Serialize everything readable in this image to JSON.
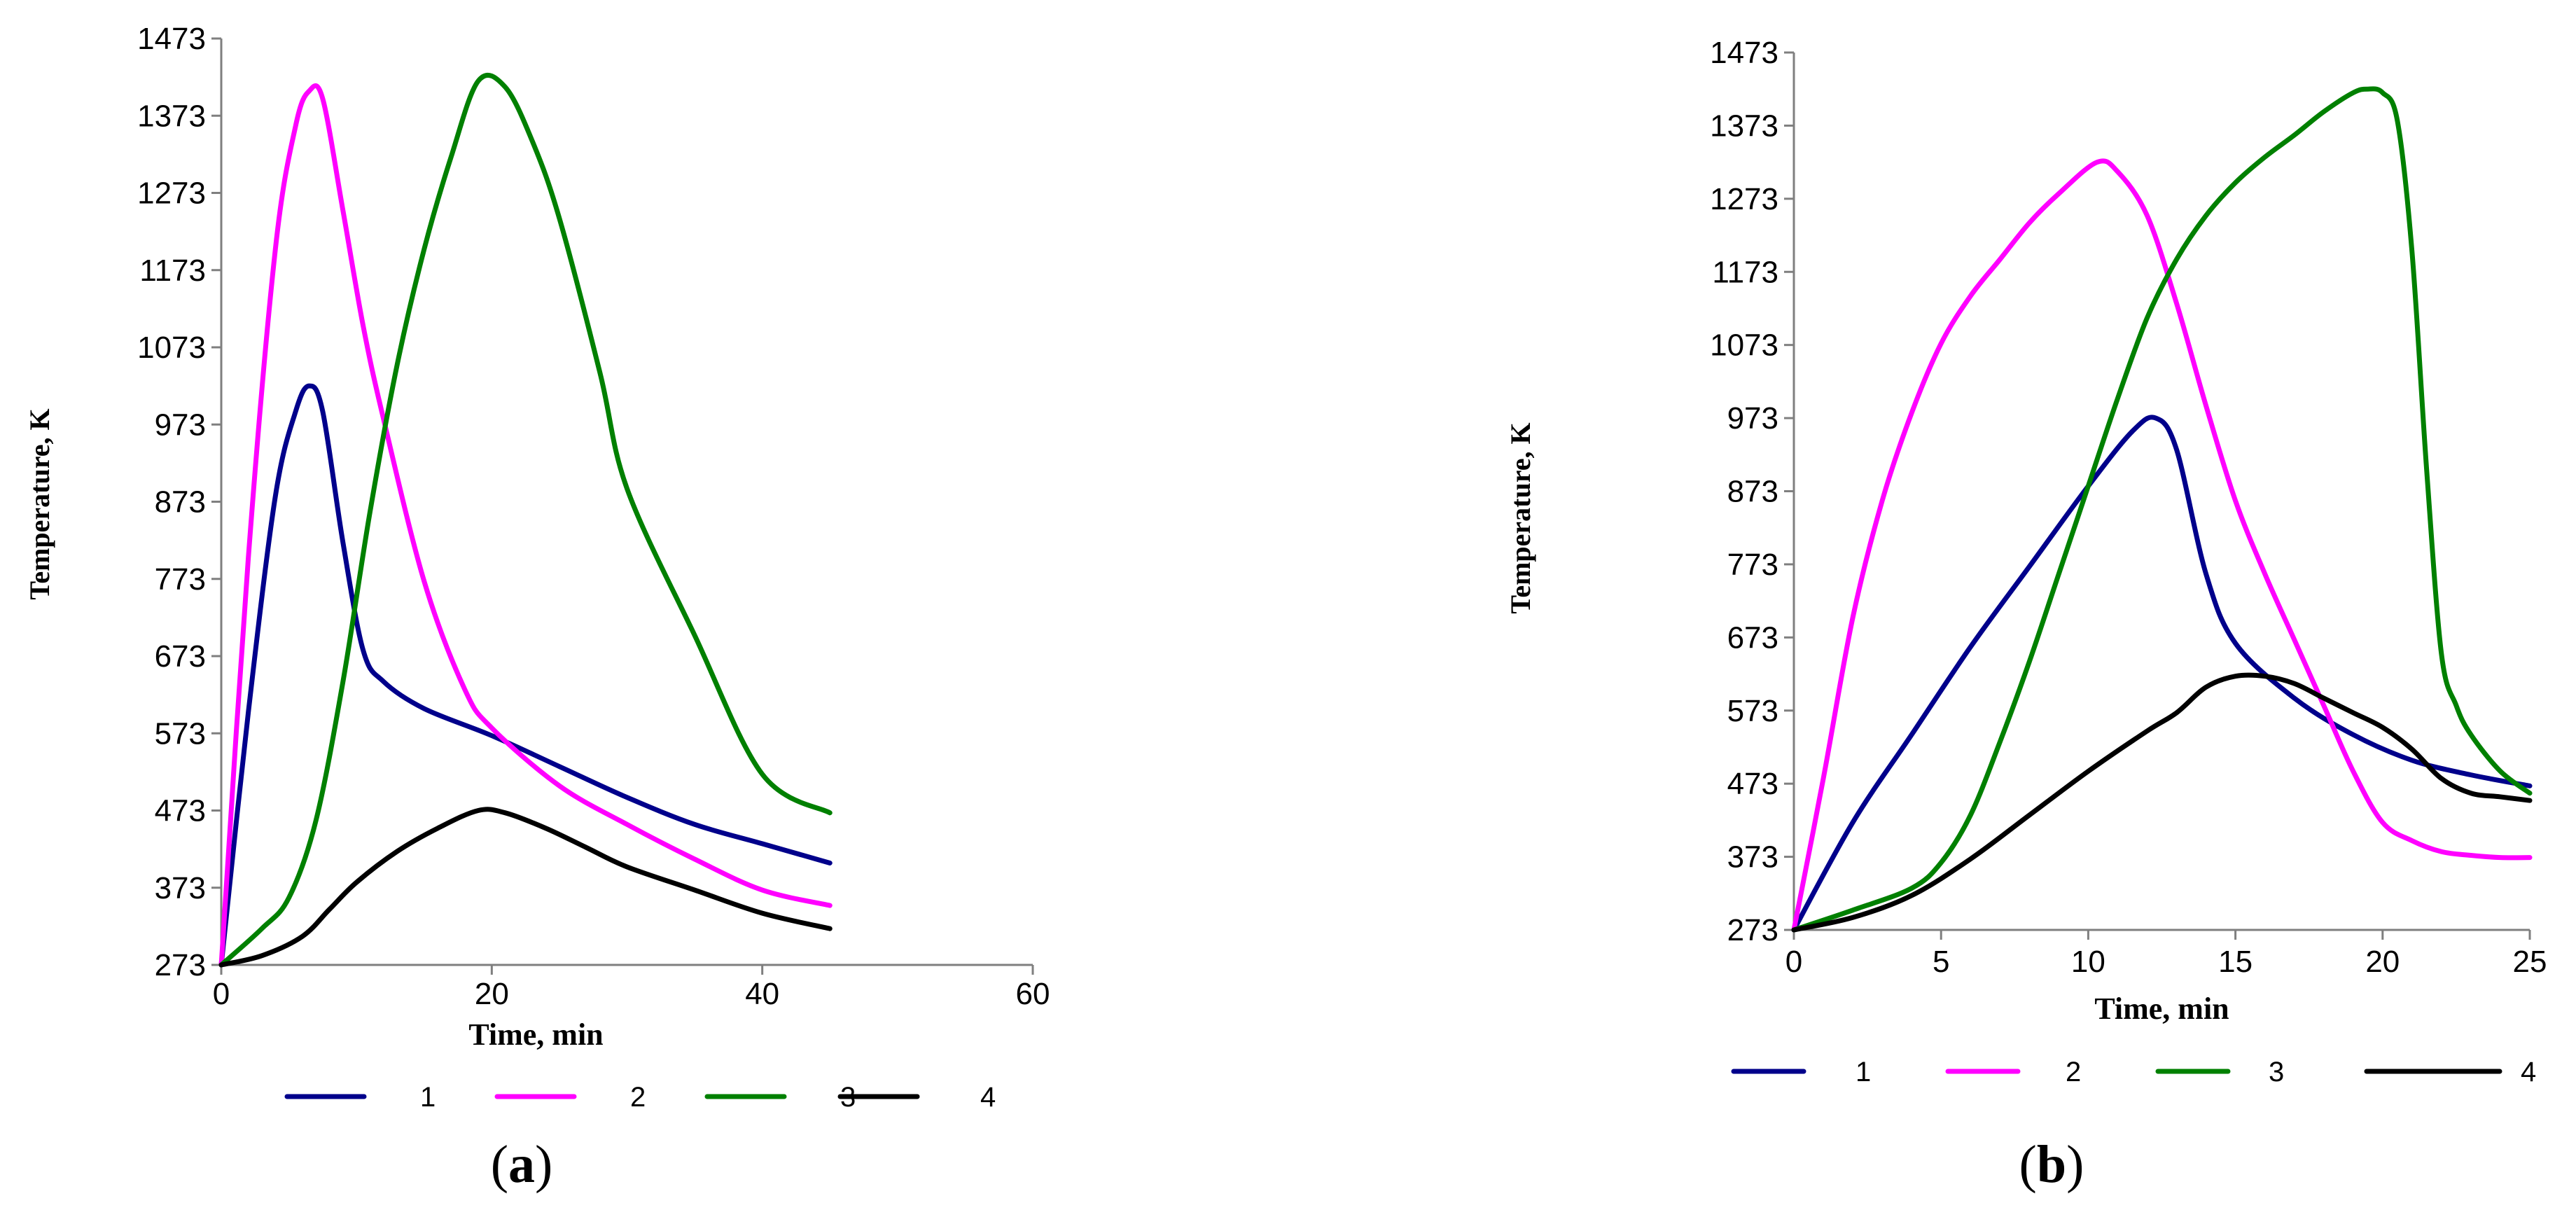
{
  "chart_data": [
    {
      "type": "line",
      "panel_label": "a",
      "xlabel": "Time, min",
      "ylabel": "Temperature, K",
      "xlim": [
        0,
        60
      ],
      "ylim": [
        273,
        1473
      ],
      "xticks": [
        0,
        20,
        40,
        60
      ],
      "yticks": [
        273,
        373,
        473,
        573,
        673,
        773,
        873,
        973,
        1073,
        1173,
        1273,
        1373,
        1473
      ],
      "legend_position": "bottom",
      "series": [
        {
          "name": "1",
          "color": "#00008b",
          "x": [
            0,
            2,
            4,
            5.5,
            6.5,
            7.5,
            9,
            10.5,
            12,
            15,
            20,
            25,
            30,
            35,
            40,
            45
          ],
          "y": [
            273,
            600,
            880,
            990,
            1023,
            990,
            820,
            680,
            640,
            605,
            570,
            530,
            490,
            455,
            430,
            405
          ]
        },
        {
          "name": "2",
          "color": "#ff00ff",
          "x": [
            0,
            2,
            4,
            5.5,
            6.5,
            7.5,
            9,
            10.5,
            12,
            15,
            18,
            20,
            25,
            30,
            35,
            40,
            45
          ],
          "y": [
            273,
            800,
            1200,
            1360,
            1405,
            1395,
            1250,
            1100,
            980,
            770,
            630,
            580,
            505,
            455,
            410,
            370,
            350
          ]
        },
        {
          "name": "3",
          "color": "#008000",
          "x": [
            0,
            3,
            5,
            7,
            9,
            11,
            13,
            15,
            17,
            19,
            21,
            23,
            25,
            28,
            30,
            35,
            40,
            45
          ],
          "y": [
            273,
            320,
            360,
            460,
            640,
            860,
            1050,
            1200,
            1320,
            1418,
            1410,
            1340,
            1240,
            1040,
            890,
            700,
            520,
            470
          ]
        },
        {
          "name": "4",
          "color": "#000000",
          "x": [
            0,
            3,
            6,
            8,
            10,
            13,
            16,
            19,
            21,
            24,
            27,
            30,
            35,
            40,
            45
          ],
          "y": [
            273,
            285,
            310,
            345,
            380,
            420,
            450,
            473,
            470,
            450,
            425,
            400,
            370,
            340,
            320
          ]
        }
      ]
    },
    {
      "type": "line",
      "panel_label": "b",
      "xlabel": "Time, min",
      "ylabel": "Temperature, K",
      "xlim": [
        0,
        25
      ],
      "ylim": [
        273,
        1473
      ],
      "xticks": [
        0,
        5,
        10,
        15,
        20,
        25
      ],
      "yticks": [
        273,
        373,
        473,
        573,
        673,
        773,
        873,
        973,
        1073,
        1173,
        1273,
        1373,
        1473
      ],
      "legend_position": "bottom",
      "series": [
        {
          "name": "1",
          "color": "#00008b",
          "x": [
            0,
            2,
            4,
            6,
            8,
            10,
            11.5,
            12.3,
            13,
            14,
            15,
            17,
            19,
            21,
            23,
            25
          ],
          "y": [
            273,
            420,
            540,
            660,
            770,
            880,
            955,
            973,
            930,
            760,
            665,
            590,
            540,
            505,
            485,
            470
          ]
        },
        {
          "name": "2",
          "color": "#ff00ff",
          "x": [
            0,
            1,
            2,
            3,
            4,
            5,
            6,
            7,
            8,
            9,
            10.3,
            11,
            12,
            13,
            14,
            15,
            16,
            17,
            18,
            19,
            20,
            21,
            22,
            23,
            24,
            25
          ],
          "y": [
            273,
            480,
            700,
            860,
            980,
            1075,
            1140,
            1190,
            1240,
            1280,
            1323,
            1310,
            1250,
            1130,
            990,
            860,
            760,
            670,
            580,
            490,
            420,
            395,
            380,
            375,
            372,
            372
          ]
        },
        {
          "name": "3",
          "color": "#008000",
          "x": [
            0,
            2,
            4,
            5,
            6,
            7,
            8,
            9,
            10,
            11,
            12,
            13,
            14,
            15,
            16,
            17,
            18,
            19,
            19.5,
            20,
            20.5,
            21,
            21.5,
            22,
            22.5,
            23,
            24,
            25
          ],
          "y": [
            273,
            300,
            330,
            365,
            430,
            530,
            640,
            760,
            880,
            1000,
            1110,
            1190,
            1250,
            1295,
            1330,
            1360,
            1392,
            1418,
            1423,
            1418,
            1380,
            1200,
            900,
            650,
            580,
            540,
            490,
            460
          ]
        },
        {
          "name": "4",
          "color": "#000000",
          "x": [
            0,
            2,
            4,
            6,
            8,
            10,
            12,
            13,
            14,
            15,
            16,
            17,
            18,
            19,
            20,
            21,
            22,
            23,
            24,
            25
          ],
          "y": [
            273,
            290,
            320,
            370,
            430,
            490,
            545,
            570,
            605,
            620,
            620,
            610,
            590,
            570,
            550,
            520,
            480,
            460,
            455,
            450
          ]
        }
      ]
    }
  ]
}
